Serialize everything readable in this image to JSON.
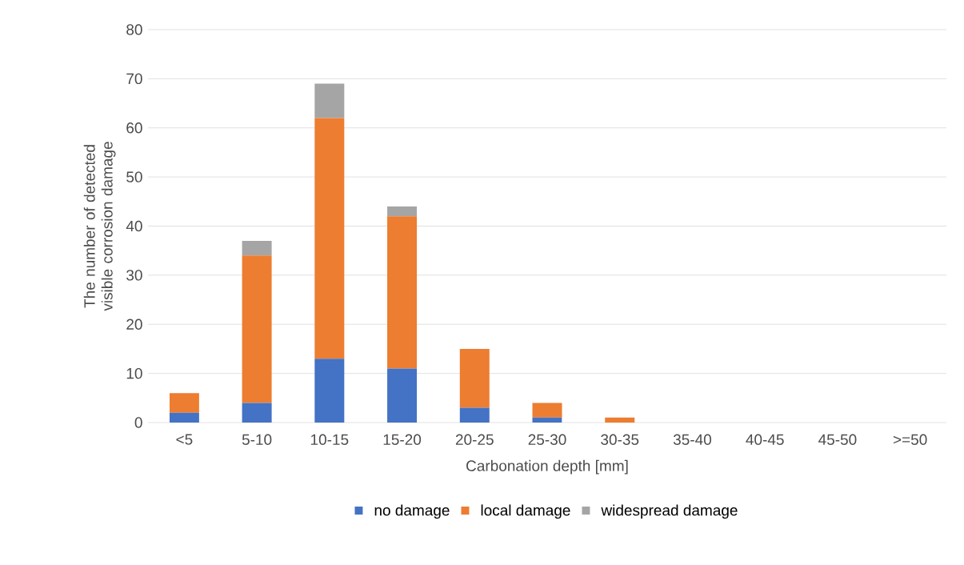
{
  "chart_data": {
    "type": "bar",
    "stacked": true,
    "xlabel": "Carbonation depth [mm]",
    "ylabel": "The number of detected visible corrosion damage",
    "categories": [
      "<5",
      "5-10",
      "10-15",
      "15-20",
      "20-25",
      "25-30",
      "30-35",
      "35-40",
      "40-45",
      "45-50",
      ">=50"
    ],
    "series": [
      {
        "name": "no damage",
        "color": "#4472c4",
        "values": [
          2,
          4,
          13,
          11,
          3,
          1,
          0,
          0,
          0,
          0,
          0
        ]
      },
      {
        "name": "local damage",
        "color": "#ed7d31",
        "values": [
          4,
          30,
          49,
          31,
          12,
          3,
          1,
          0,
          0,
          0,
          0
        ]
      },
      {
        "name": "widespread damage",
        "color": "#a5a5a5",
        "values": [
          0,
          3,
          7,
          2,
          0,
          0,
          0,
          0,
          0,
          0,
          0
        ]
      }
    ],
    "ylim": [
      0,
      80
    ],
    "yticks": [
      0,
      10,
      20,
      30,
      40,
      50,
      60,
      70,
      80
    ],
    "grid": "y",
    "legend": "bottom"
  }
}
